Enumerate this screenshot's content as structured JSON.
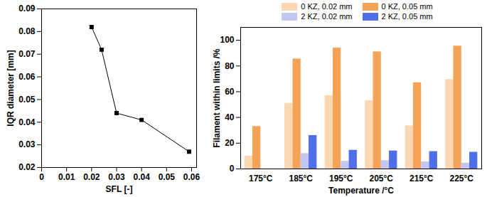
{
  "chart_data": [
    {
      "type": "line",
      "x_label": "SFL [-]",
      "y_label": "IQR diameter [mm]",
      "x": [
        0.02,
        0.024,
        0.03,
        0.04,
        0.059
      ],
      "values": [
        0.082,
        0.072,
        0.044,
        0.041,
        0.027
      ],
      "color": "#000000",
      "marker": "square",
      "line_style": "solid",
      "xlim": [
        0,
        0.062
      ],
      "xticks": [
        0,
        0.01,
        0.02,
        0.03,
        0.04,
        0.05,
        0.06
      ],
      "ylim": [
        0.02,
        0.09
      ],
      "yticks": [
        0.02,
        0.03,
        0.04,
        0.05,
        0.06,
        0.07,
        0.08,
        0.09
      ],
      "grid": false
    },
    {
      "type": "bar",
      "x_label": "Temperature /°C",
      "y_label": "Filament within limits /%",
      "categories": [
        "175°C",
        "185°C",
        "195°C",
        "205°C",
        "215°C",
        "225°C"
      ],
      "series": [
        {
          "name": "0 KZ, 0.02 mm",
          "color": "#fbd8b3",
          "values": [
            10,
            51,
            57,
            53,
            33.5,
            69.5
          ]
        },
        {
          "name": "0 KZ, 0.05 mm",
          "color": "#f4a356",
          "values": [
            33,
            85.5,
            94,
            91,
            67,
            95.5
          ]
        },
        {
          "name": "2 KZ, 0.02 mm",
          "color": "#c3c7f1",
          "values": [
            0,
            12,
            6,
            6.5,
            5.5,
            4.5
          ]
        },
        {
          "name": "2 KZ, 0.05 mm",
          "color": "#4f6fe6",
          "values": [
            0,
            26,
            14.5,
            14,
            13.5,
            13
          ]
        }
      ],
      "ylim": [
        0,
        110
      ],
      "yticks": [
        0,
        20,
        40,
        60,
        80,
        100
      ],
      "legend": "top",
      "grid": false
    }
  ]
}
